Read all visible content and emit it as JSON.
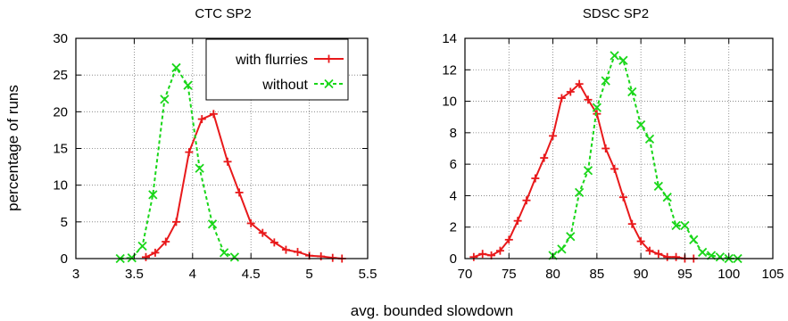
{
  "figure": {
    "ylabel": "percentage of runs",
    "xlabel": "avg. bounded slowdown"
  },
  "legend": {
    "items": [
      {
        "label": "with flurries",
        "color": "#e8191b",
        "marker": "plus",
        "dash": "solid"
      },
      {
        "label": "without",
        "color": "#19d619",
        "marker": "cross",
        "dash": "dashed"
      }
    ]
  },
  "chart_data": [
    {
      "type": "line",
      "title": "CTC SP2",
      "xlabel": "",
      "ylabel": "percentage of runs",
      "xlim": [
        3,
        5.5
      ],
      "ylim": [
        0,
        30
      ],
      "xticks": [
        3,
        3.5,
        4,
        4.5,
        5,
        5.5
      ],
      "xtick_labels": [
        "3",
        "3.5",
        "4",
        "4.5",
        "5",
        "5.5"
      ],
      "yticks": [
        0,
        5,
        10,
        15,
        20,
        25,
        30
      ],
      "ytick_labels": [
        "0",
        "5",
        "10",
        "15",
        "20",
        "25",
        "30"
      ],
      "grid": true,
      "legend_position": "top-right",
      "series": [
        {
          "name": "with flurries",
          "color": "#e8191b",
          "marker": "plus",
          "dash": "solid",
          "x": [
            3.6,
            3.68,
            3.77,
            3.86,
            3.97,
            4.08,
            4.18,
            4.3,
            4.4,
            4.5,
            4.6,
            4.7,
            4.8,
            4.9,
            5.0,
            5.1,
            5.2,
            5.28
          ],
          "y": [
            0.2,
            0.8,
            2.3,
            5.0,
            14.5,
            19.0,
            19.7,
            13.2,
            9.0,
            4.8,
            3.5,
            2.2,
            1.2,
            0.9,
            0.4,
            0.3,
            0.1,
            0.0
          ]
        },
        {
          "name": "without",
          "color": "#19d619",
          "marker": "cross",
          "dash": "dashed",
          "x": [
            3.38,
            3.48,
            3.57,
            3.66,
            3.76,
            3.86,
            3.96,
            4.06,
            4.17,
            4.27,
            4.36
          ],
          "y": [
            0.0,
            0.1,
            1.7,
            8.7,
            21.7,
            26.0,
            23.6,
            12.3,
            4.7,
            0.8,
            0.2
          ]
        }
      ]
    },
    {
      "type": "line",
      "title": "SDSC SP2",
      "xlabel": "",
      "ylabel": "",
      "xlim": [
        70,
        105
      ],
      "ylim": [
        0,
        14
      ],
      "xticks": [
        70,
        75,
        80,
        85,
        90,
        95,
        100,
        105
      ],
      "xtick_labels": [
        "70",
        "75",
        "80",
        "85",
        "90",
        "95",
        "100",
        "105"
      ],
      "yticks": [
        0,
        2,
        4,
        6,
        8,
        10,
        12,
        14
      ],
      "ytick_labels": [
        "0",
        "2",
        "4",
        "6",
        "8",
        "10",
        "12",
        "14"
      ],
      "grid": true,
      "series": [
        {
          "name": "with flurries",
          "color": "#e8191b",
          "marker": "plus",
          "dash": "solid",
          "x": [
            71,
            72,
            73,
            74,
            75,
            76,
            77,
            78,
            79,
            80,
            81,
            82,
            83,
            84,
            85,
            86,
            87,
            88,
            89,
            90,
            91,
            92,
            93,
            94,
            95,
            96
          ],
          "y": [
            0.1,
            0.3,
            0.2,
            0.5,
            1.2,
            2.4,
            3.7,
            5.1,
            6.4,
            7.8,
            10.2,
            10.6,
            11.1,
            10.1,
            9.2,
            7.0,
            5.7,
            3.9,
            2.2,
            1.1,
            0.5,
            0.3,
            0.1,
            0.1,
            0.0,
            0.0
          ]
        },
        {
          "name": "without",
          "color": "#19d619",
          "marker": "cross",
          "dash": "dashed",
          "x": [
            80,
            81,
            82,
            83,
            84,
            85,
            86,
            87,
            88,
            89,
            90,
            91,
            92,
            93,
            94,
            95,
            96,
            97,
            98,
            99,
            100,
            101
          ],
          "y": [
            0.2,
            0.6,
            1.4,
            4.2,
            5.6,
            9.6,
            11.3,
            12.9,
            12.6,
            10.6,
            8.5,
            7.6,
            4.6,
            3.9,
            2.1,
            2.1,
            1.2,
            0.4,
            0.2,
            0.1,
            0.0,
            0.0
          ]
        }
      ]
    }
  ]
}
